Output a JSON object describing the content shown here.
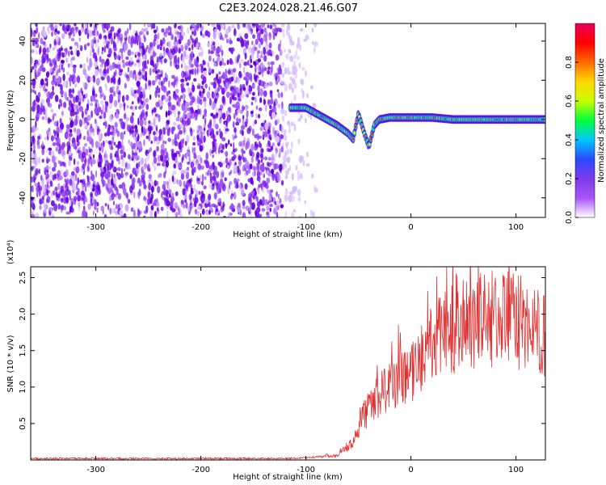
{
  "title": "C2E3.2024.028.21.46.G07",
  "chart_data": [
    {
      "type": "heatmap",
      "xlabel": "Height of straight line (km)",
      "ylabel": "Frequency (Hz)",
      "xlim": [
        -362,
        128
      ],
      "ylim": [
        -50,
        49
      ],
      "xticks": [
        -300,
        -200,
        -100,
        0,
        100
      ],
      "yticks": [
        -40,
        -20,
        0,
        20,
        40
      ],
      "colorbar": {
        "label": "Normalized spectral amplitude",
        "range": [
          0,
          1
        ],
        "ticks": [
          "0.0",
          "0.2",
          "0.4",
          "0.6",
          "0.8"
        ],
        "tick_values": [
          0,
          0.2,
          0.4,
          0.6,
          0.8
        ],
        "colors": [
          "#ffffff",
          "#a855f7",
          "#7c3aed",
          "#2a4bff",
          "#00c8ff",
          "#00ff3c",
          "#c8ff00",
          "#ffd700",
          "#ff6a00",
          "#ff0000",
          "#e8005a"
        ]
      },
      "noise_region": {
        "x_from": -362,
        "x_to": -90
      },
      "signal_track": {
        "x": [
          -115,
          -100,
          -90,
          -80,
          -70,
          -60,
          -55,
          -50,
          -45,
          -40,
          -35,
          -30,
          -20,
          0,
          20,
          40,
          60,
          80,
          100,
          128
        ],
        "y": [
          6,
          6,
          3,
          0,
          -3,
          -7,
          -10,
          3,
          -6,
          -14,
          -3,
          0,
          1,
          1,
          1,
          0,
          0,
          0,
          0,
          0
        ]
      }
    },
    {
      "type": "line",
      "xlabel": "Height of straight line (km)",
      "ylabel": "SNR (10 * v/v)",
      "y_multiplier": "(x10⁴)",
      "xlim": [
        -362,
        128
      ],
      "ylim": [
        0,
        2.65
      ],
      "xticks": [
        -300,
        -200,
        -100,
        0,
        100
      ],
      "yticks": [
        "0.5",
        "1.0",
        "1.5",
        "2.0",
        "2.5"
      ],
      "ytick_values": [
        0.5,
        1.0,
        1.5,
        2.0,
        2.5
      ],
      "color": "#e03030",
      "envelope": {
        "x": [
          -362,
          -110,
          -70,
          -55,
          -45,
          -35,
          -25,
          -10,
          0,
          10,
          20,
          30,
          50,
          70,
          90,
          110,
          128
        ],
        "y": [
          0.02,
          0.02,
          0.06,
          0.25,
          0.6,
          0.8,
          0.95,
          1.1,
          1.2,
          1.4,
          1.6,
          1.75,
          1.85,
          1.95,
          1.95,
          1.85,
          1.75
        ]
      }
    }
  ]
}
